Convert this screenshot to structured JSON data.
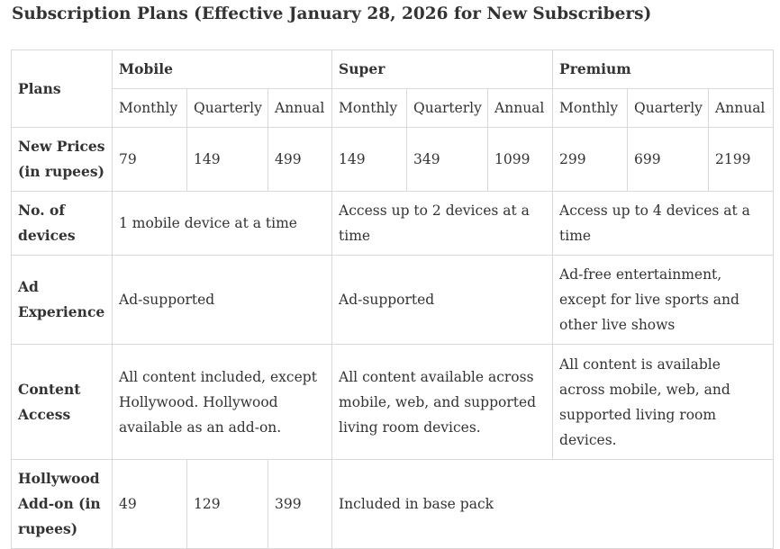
{
  "title": "Subscription Plans (Effective January 28, 2026 for New Subscribers)",
  "table": {
    "corner_header": "Plans",
    "plans": [
      "Mobile",
      "Super",
      "Premium"
    ],
    "periods": [
      "Monthly",
      "Quarterly",
      "Annual"
    ],
    "rows": {
      "new_prices": {
        "label": "New Prices (in rupees)",
        "mobile": [
          "79",
          "149",
          "499"
        ],
        "super": [
          "149",
          "349",
          "1099"
        ],
        "premium": [
          "299",
          "699",
          "2199"
        ]
      },
      "devices": {
        "label": "No. of devices",
        "mobile": "1 mobile device at a time",
        "super": "Access up to 2 devices at a time",
        "premium": "Access up to 4 devices at a time"
      },
      "ad_experience": {
        "label": "Ad Experience",
        "mobile": "Ad-supported",
        "super": "Ad-supported",
        "premium": "Ad-free entertainment, except for live sports and other live shows"
      },
      "content_access": {
        "label": "Content Access",
        "mobile": "All content included, except Hollywood. Hollywood available as an add-on.",
        "super": "All content available across mobile, web, and supported living room devices.",
        "premium": "All content is available across mobile, web, and supported living room devices."
      },
      "hollywood_addon": {
        "label": "Hollywood Add-on (in rupees)",
        "mobile": [
          "49",
          "129",
          "399"
        ],
        "other_plans": "Included in base pack"
      }
    }
  }
}
